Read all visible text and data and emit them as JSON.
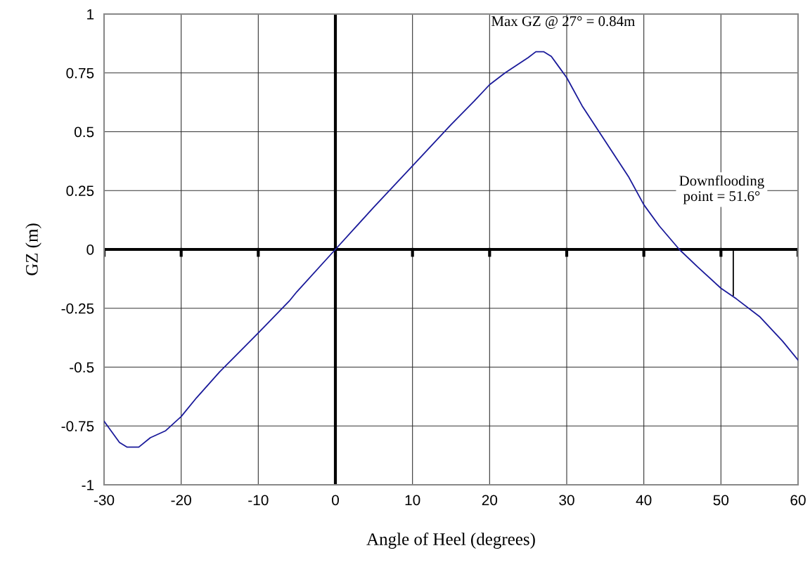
{
  "chart_data": {
    "type": "line",
    "xlabel": "Angle of Heel (degrees)",
    "ylabel": "GZ (m)",
    "x": [
      -30,
      -28,
      -27,
      -25.5,
      -24,
      -22,
      -20,
      -18,
      -15,
      -10,
      -6,
      -5,
      0,
      5,
      10,
      15,
      18,
      20,
      22,
      25,
      26,
      27,
      28,
      29,
      30,
      32,
      35,
      38,
      40,
      42,
      44.6,
      47,
      50,
      52,
      55,
      58,
      60
    ],
    "series": [
      {
        "type": "line",
        "color": "#000000",
        "x": [
          51.6,
          51.6
        ],
        "values": [
          0,
          -0.195
        ]
      },
      {
        "color": "#1a1a9a",
        "values": [
          -0.73,
          -0.82,
          -0.84,
          -0.84,
          -0.8,
          -0.77,
          -0.71,
          -0.63,
          -0.52,
          -0.355,
          -0.22,
          -0.18,
          0,
          0.18,
          0.355,
          0.53,
          0.63,
          0.7,
          0.75,
          0.815,
          0.84,
          0.84,
          0.82,
          0.775,
          0.73,
          0.61,
          0.46,
          0.31,
          0.19,
          0.1,
          0,
          -0.075,
          -0.165,
          -0.21,
          -0.285,
          -0.39,
          -0.47
        ]
      }
    ],
    "xlim": [
      -30,
      60
    ],
    "xticks": [
      -30,
      -20,
      -10,
      0,
      10,
      20,
      30,
      40,
      50,
      60
    ],
    "ylim": [
      -1,
      1
    ],
    "yticks": [
      -1,
      -0.75,
      -0.5,
      -0.25,
      0,
      0.25,
      0.5,
      0.75,
      1
    ],
    "grid": true,
    "legend": false,
    "marker": "none",
    "line_style": "solid",
    "annotations": [
      {
        "text": "Max GZ @ 27° = 0.84m",
        "x": 27,
        "y": 0.84
      },
      "Downflooding\npoint = 51.6°"
    ]
  }
}
